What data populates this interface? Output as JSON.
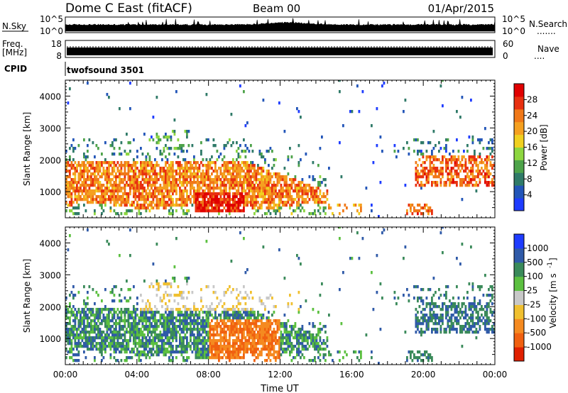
{
  "header": {
    "station": "Dome C East (fitACF)",
    "beam": "Beam 00",
    "date": "01/Apr/2015"
  },
  "chart_data": [
    {
      "type": "line",
      "name": "noise-panel",
      "left_label": "N.Sky",
      "right_label": "N.Search",
      "right_value": ".......",
      "left_ticks": [
        "10^5",
        "10^0"
      ],
      "right_ticks": [
        "10^5",
        "10^0"
      ]
    },
    {
      "type": "bar",
      "name": "frequency-panel",
      "left_label_line1": "Freq.",
      "left_label_line2": "[MHz]",
      "right_label": "Nave",
      "right_value": "....",
      "left_ticks": [
        18,
        8
      ],
      "right_ticks": [
        60,
        0
      ]
    },
    {
      "type": "table",
      "name": "cpid-panel",
      "label": "CPID",
      "program": "twofsound 3501"
    },
    {
      "type": "heatmap",
      "name": "power-panel",
      "ylabel": "Slant Range [km]",
      "ylim": [
        180,
        4500
      ],
      "yticks": [
        1000,
        2000,
        3000,
        4000
      ],
      "colorbar_label": "Power [dB]",
      "colorbar_ticks": [
        4,
        8,
        12,
        16,
        20,
        24,
        28
      ],
      "colorbar_colors": [
        "#1e3cff",
        "#2255b8",
        "#2f7a68",
        "#4ea34a",
        "#8dd640",
        "#f0d020",
        "#f5a020",
        "#f07818",
        "#e83010",
        "#e00000"
      ]
    },
    {
      "type": "heatmap",
      "name": "velocity-panel",
      "ylabel": "Slant Range [km]",
      "ylim": [
        180,
        4500
      ],
      "yticks": [
        1000,
        2000,
        3000,
        4000
      ],
      "xlabel": "Time UT",
      "xticks": [
        "00:00",
        "04:00",
        "08:00",
        "12:00",
        "16:00",
        "20:00",
        "00:00"
      ],
      "colorbar_label": "Velocity [m s",
      "colorbar_exponent": "-1",
      "colorbar_ticks": [
        "1000",
        "500",
        "100",
        "25",
        "-25",
        "-100",
        "-500",
        "-1000"
      ],
      "colorbar_colors": [
        "#1e3cff",
        "#2f5aa8",
        "#3a8a5a",
        "#5cc040",
        "#c8c8c8",
        "#f0c030",
        "#f58a20",
        "#f06010",
        "#e02000"
      ]
    }
  ]
}
